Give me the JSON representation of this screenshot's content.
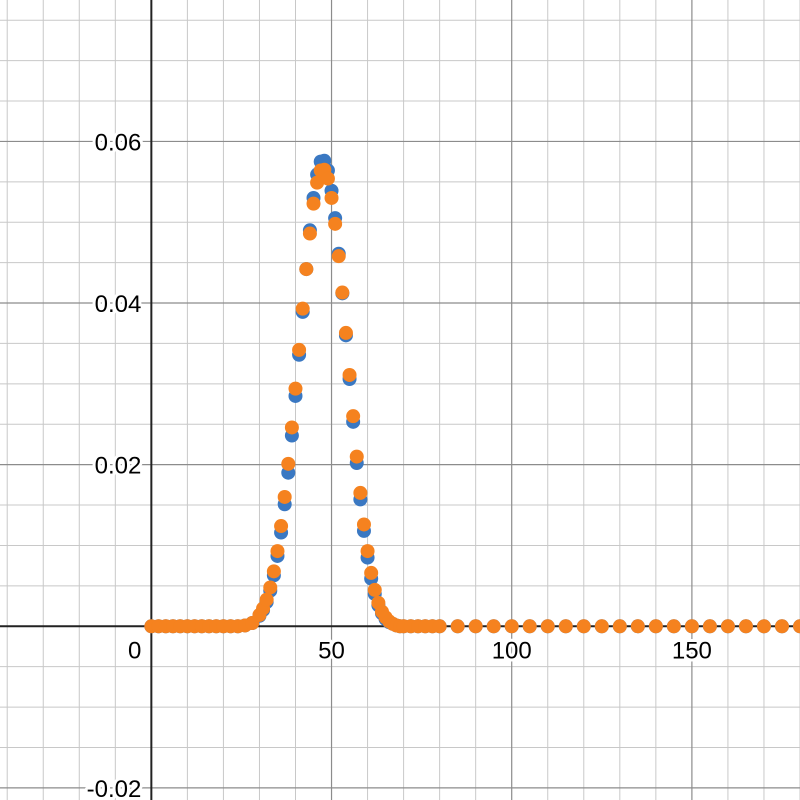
{
  "chart_data": {
    "type": "scatter",
    "xlim": [
      -42,
      180
    ],
    "ylim": [
      -0.0215,
      0.0775
    ],
    "grid": true,
    "x_ticks": [
      {
        "value": 0,
        "label": "0"
      },
      {
        "value": 50,
        "label": "50"
      },
      {
        "value": 100,
        "label": "100"
      },
      {
        "value": 150,
        "label": "150"
      }
    ],
    "y_ticks": [
      {
        "value": -0.02,
        "label": "-0.02"
      },
      {
        "value": 0.02,
        "label": "0.02"
      },
      {
        "value": 0.04,
        "label": "0.04"
      },
      {
        "value": 0.06,
        "label": "0.06"
      }
    ],
    "series": [
      {
        "color": "#3a78c2",
        "x": [
          0,
          2,
          4,
          6,
          8,
          10,
          12,
          14,
          16,
          18,
          20,
          22,
          24,
          26,
          28,
          30,
          31,
          32,
          33,
          34,
          35,
          36,
          37,
          38,
          39,
          40,
          41,
          42,
          43,
          44,
          45,
          46,
          47,
          48,
          49,
          50,
          51,
          52,
          53,
          54,
          55,
          56,
          57,
          58,
          59,
          60,
          61,
          62,
          63,
          64,
          65,
          66,
          67,
          68,
          69,
          70,
          72,
          74,
          76,
          78,
          80,
          85,
          90,
          95,
          100,
          105,
          110,
          115,
          120,
          125,
          130,
          135,
          140,
          145,
          150,
          155,
          160,
          165,
          170,
          175,
          180
        ],
        "values": [
          0,
          0,
          0,
          0,
          0,
          0,
          0,
          0,
          0,
          0,
          0,
          0,
          0,
          0.0001,
          0.0004,
          0.0013,
          0.002,
          0.003,
          0.0044,
          0.0063,
          0.0087,
          0.0116,
          0.0151,
          0.019,
          0.0236,
          0.0285,
          0.0336,
          0.0389,
          0.0442,
          0.049,
          0.053,
          0.0559,
          0.0575,
          0.0576,
          0.0564,
          0.0539,
          0.0505,
          0.0461,
          0.0412,
          0.036,
          0.0306,
          0.0253,
          0.0202,
          0.0157,
          0.0118,
          0.0085,
          0.0059,
          0.004,
          0.0026,
          0.0016,
          0.0009,
          0.0005,
          0.0003,
          0.0001,
          0,
          0,
          0,
          0,
          0,
          0,
          0,
          0,
          0,
          0,
          0,
          0,
          0,
          0,
          0,
          0,
          0,
          0,
          0,
          0,
          0,
          0,
          0,
          0,
          0,
          0,
          0
        ]
      },
      {
        "color": "#f5821f",
        "x": [
          0,
          2,
          4,
          6,
          8,
          10,
          12,
          14,
          16,
          18,
          20,
          22,
          24,
          26,
          28,
          30,
          31,
          32,
          33,
          34,
          35,
          36,
          37,
          38,
          39,
          40,
          41,
          42,
          43,
          44,
          45,
          46,
          47,
          48,
          49,
          50,
          51,
          52,
          53,
          54,
          55,
          56,
          57,
          58,
          59,
          60,
          61,
          62,
          63,
          64,
          65,
          66,
          67,
          68,
          69,
          70,
          72,
          74,
          76,
          78,
          80,
          85,
          90,
          95,
          100,
          105,
          110,
          115,
          120,
          125,
          130,
          135,
          140,
          145,
          150,
          155,
          160,
          165,
          170,
          175,
          180
        ],
        "values": [
          0,
          0,
          0,
          0,
          0,
          0,
          0,
          0,
          0,
          0,
          0,
          0,
          0,
          0.0001,
          0.0004,
          0.0014,
          0.0022,
          0.0033,
          0.0048,
          0.0068,
          0.0093,
          0.0124,
          0.016,
          0.0201,
          0.0246,
          0.0294,
          0.0342,
          0.0393,
          0.0442,
          0.0486,
          0.0523,
          0.0549,
          0.0564,
          0.0565,
          0.0554,
          0.053,
          0.0498,
          0.0458,
          0.0413,
          0.0363,
          0.0311,
          0.026,
          0.021,
          0.0165,
          0.0126,
          0.0093,
          0.0066,
          0.0045,
          0.0029,
          0.0018,
          0.0011,
          0.0006,
          0.0003,
          0.0001,
          0,
          0,
          0,
          0,
          0,
          0,
          0,
          0,
          0,
          0,
          0,
          0,
          0,
          0,
          0,
          0,
          0,
          0,
          0,
          0,
          0,
          0,
          0,
          0,
          0,
          0,
          0
        ]
      }
    ]
  }
}
